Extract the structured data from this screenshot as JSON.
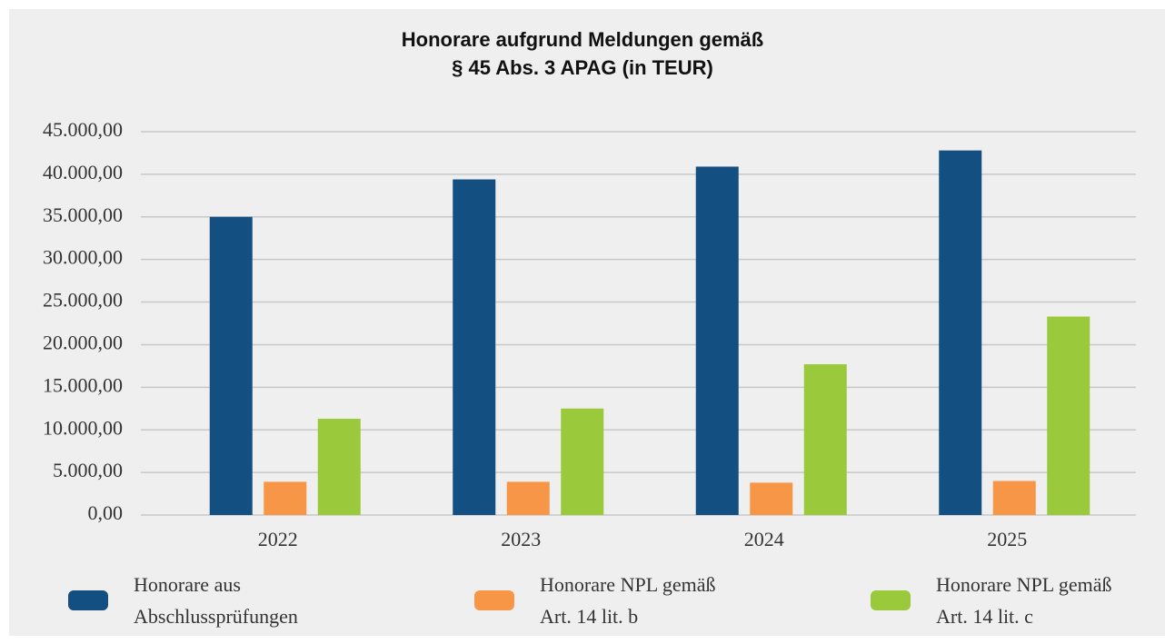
{
  "chart_data": {
    "type": "bar",
    "title": [
      "Honorare aufgrund Meldungen gemäß",
      "§ 45 Abs. 3 APAG (in TEUR)"
    ],
    "categories": [
      "2022",
      "2023",
      "2024",
      "2025"
    ],
    "series": [
      {
        "name": "Honorare aus Abschlussprüfungen",
        "color": "#134f80",
        "values": [
          35000,
          39400,
          40900,
          42800
        ]
      },
      {
        "name": "Honorare NPL gemäß Art. 14 lit. b",
        "color": "#f79646",
        "values": [
          3900,
          3900,
          3800,
          4000
        ]
      },
      {
        "name": "Honorare NPL gemäß Art. 14 lit. c",
        "color": "#9ac93b",
        "values": [
          11300,
          12500,
          17700,
          23300
        ]
      }
    ],
    "ylim": [
      0,
      45000
    ],
    "yticks": [
      {
        "value": 0,
        "label": "0,00"
      },
      {
        "value": 5000,
        "label": "5.000,00"
      },
      {
        "value": 10000,
        "label": "10.000,00"
      },
      {
        "value": 15000,
        "label": "15.000,00"
      },
      {
        "value": 20000,
        "label": "20.000,00"
      },
      {
        "value": 25000,
        "label": "25.000,00"
      },
      {
        "value": 30000,
        "label": "30.000,00"
      },
      {
        "value": 35000,
        "label": "35.000,00"
      },
      {
        "value": 40000,
        "label": "40.000,00"
      },
      {
        "value": 45000,
        "label": "45.000,00"
      }
    ],
    "grid": true,
    "legend": "bottom"
  }
}
